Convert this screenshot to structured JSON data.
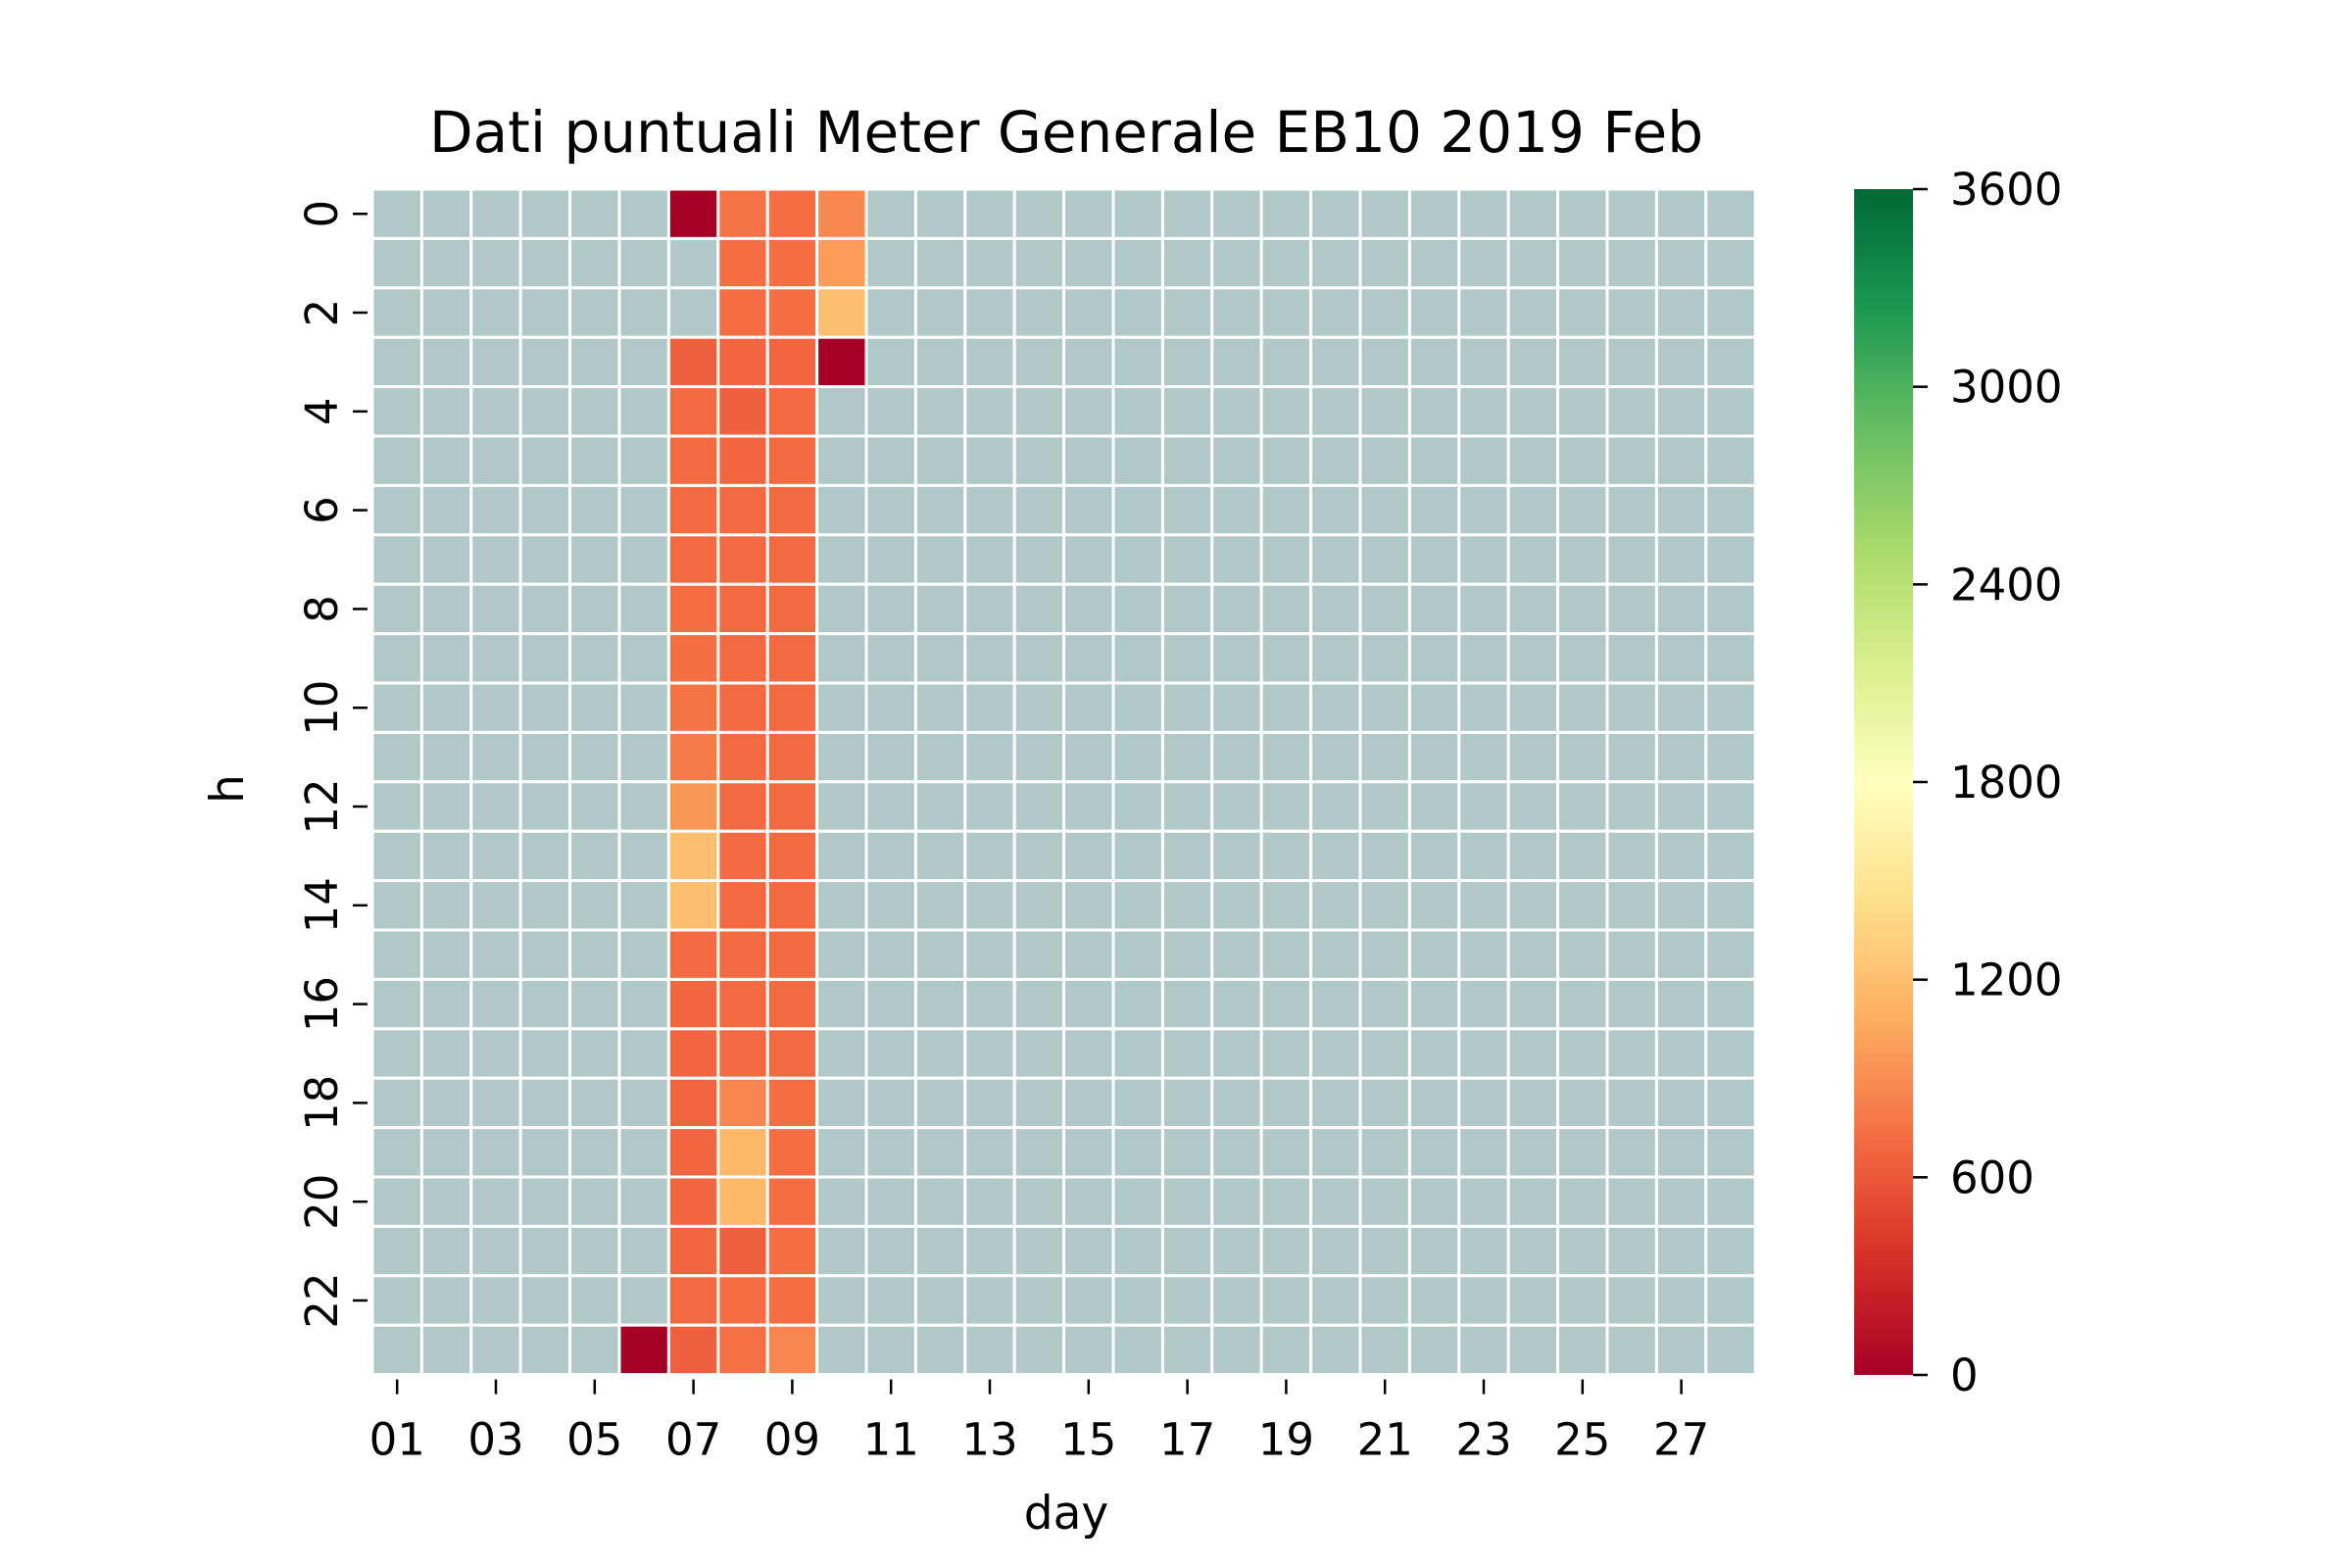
{
  "chart_data": {
    "type": "heatmap",
    "title": "Dati puntuali Meter Generale EB10 2019 Feb",
    "xlabel": "day",
    "ylabel": "h",
    "x_categories": [
      "01",
      "02",
      "03",
      "04",
      "05",
      "06",
      "07",
      "08",
      "09",
      "10",
      "11",
      "12",
      "13",
      "14",
      "15",
      "16",
      "17",
      "18",
      "19",
      "20",
      "21",
      "22",
      "23",
      "24",
      "25",
      "26",
      "27",
      "28"
    ],
    "x_tick_labels": [
      "01",
      "03",
      "05",
      "07",
      "09",
      "11",
      "13",
      "15",
      "17",
      "19",
      "21",
      "23",
      "25",
      "27"
    ],
    "y_categories": [
      0,
      1,
      2,
      3,
      4,
      5,
      6,
      7,
      8,
      9,
      10,
      11,
      12,
      13,
      14,
      15,
      16,
      17,
      18,
      19,
      20,
      21,
      22,
      23
    ],
    "y_tick_labels": [
      "0",
      "2",
      "4",
      "6",
      "8",
      "10",
      "12",
      "14",
      "16",
      "18",
      "20",
      "22"
    ],
    "missing_color": "#b0c8c8",
    "grid_line_color": "#ffffff",
    "colormap": "RdYlGn",
    "colorbar": {
      "min": 0,
      "max": 3600,
      "ticks": [
        "0",
        "600",
        "1200",
        "1800",
        "2400",
        "3000",
        "3600"
      ]
    },
    "series": [
      {
        "day": "06",
        "values": [
          null,
          null,
          null,
          null,
          null,
          null,
          null,
          null,
          null,
          null,
          null,
          null,
          null,
          null,
          null,
          null,
          null,
          null,
          null,
          null,
          null,
          null,
          null,
          0
        ]
      },
      {
        "day": "07",
        "values": [
          0,
          null,
          null,
          650,
          700,
          700,
          700,
          700,
          720,
          730,
          760,
          800,
          950,
          1200,
          1200,
          700,
          680,
          680,
          680,
          680,
          680,
          680,
          700,
          640
        ]
      },
      {
        "day": "08",
        "values": [
          760,
          720,
          720,
          680,
          650,
          680,
          700,
          700,
          700,
          700,
          700,
          700,
          700,
          700,
          700,
          700,
          700,
          700,
          860,
          1150,
          1150,
          640,
          720,
          740
        ]
      },
      {
        "day": "09",
        "values": [
          720,
          720,
          720,
          680,
          null,
          null,
          null,
          null,
          null,
          null,
          null,
          null,
          null,
          null,
          null,
          null,
          null,
          null,
          null,
          null,
          null,
          null,
          null,
          860
        ]
      },
      {
        "day": "10",
        "values": [
          870,
          980,
          1200,
          0,
          null,
          null,
          null,
          null,
          null,
          null,
          null,
          null,
          null,
          null,
          null,
          null,
          null,
          null,
          null,
          null,
          null,
          null,
          null,
          null
        ]
      }
    ],
    "column_overrides": {
      "09": {
        "4": 700,
        "5": 700,
        "6": 700,
        "7": 700,
        "8": 700,
        "9": 700,
        "10": 700,
        "11": 700,
        "12": 700,
        "13": 700,
        "14": 700,
        "15": 700,
        "16": 700,
        "17": 700,
        "18": 720,
        "19": 720,
        "20": 720,
        "21": 720,
        "22": 720
      }
    }
  }
}
